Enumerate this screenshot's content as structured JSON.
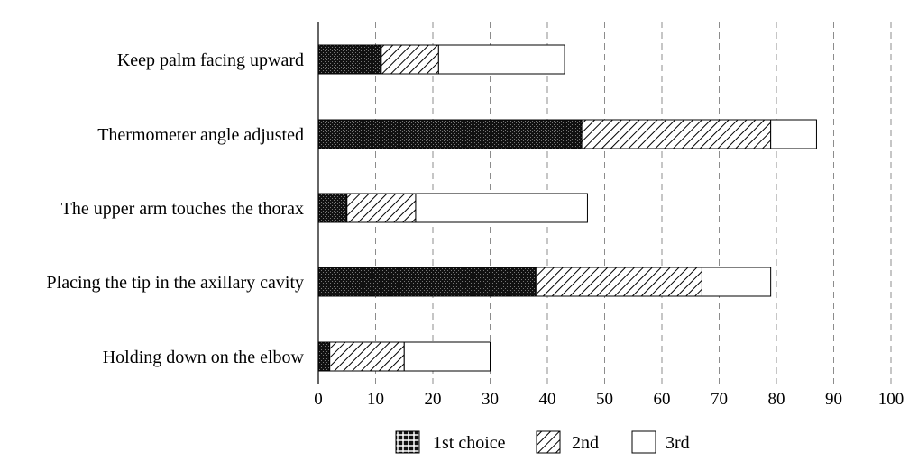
{
  "chart_data": {
    "type": "bar",
    "orientation": "horizontal",
    "stacked": true,
    "title": "",
    "xlabel": "",
    "ylabel": "",
    "categories": [
      "Keep palm facing upward",
      "Thermometer  angle  adjusted",
      "The  upper  arm  touches  the  thorax",
      "Placing  the  tip  in  the  axillary  cavity",
      "Holding  down  on  the  elbow"
    ],
    "series": [
      {
        "name": "1st  choice",
        "values": [
          11,
          46,
          5,
          38,
          2
        ]
      },
      {
        "name": "2nd",
        "values": [
          10,
          33,
          12,
          29,
          13
        ]
      },
      {
        "name": "3rd",
        "values": [
          22,
          8,
          30,
          12,
          15
        ]
      }
    ],
    "xlim": [
      0,
      100
    ],
    "xticks": [
      "0",
      "10",
      "20",
      "30",
      "40",
      "50",
      "60",
      "70",
      "80",
      "90",
      "100"
    ],
    "grid": "vertical-dashed",
    "legend_position": "bottom-center",
    "series_styles": [
      "dark-dotted-pattern",
      "diagonal-hatch",
      "white"
    ]
  }
}
